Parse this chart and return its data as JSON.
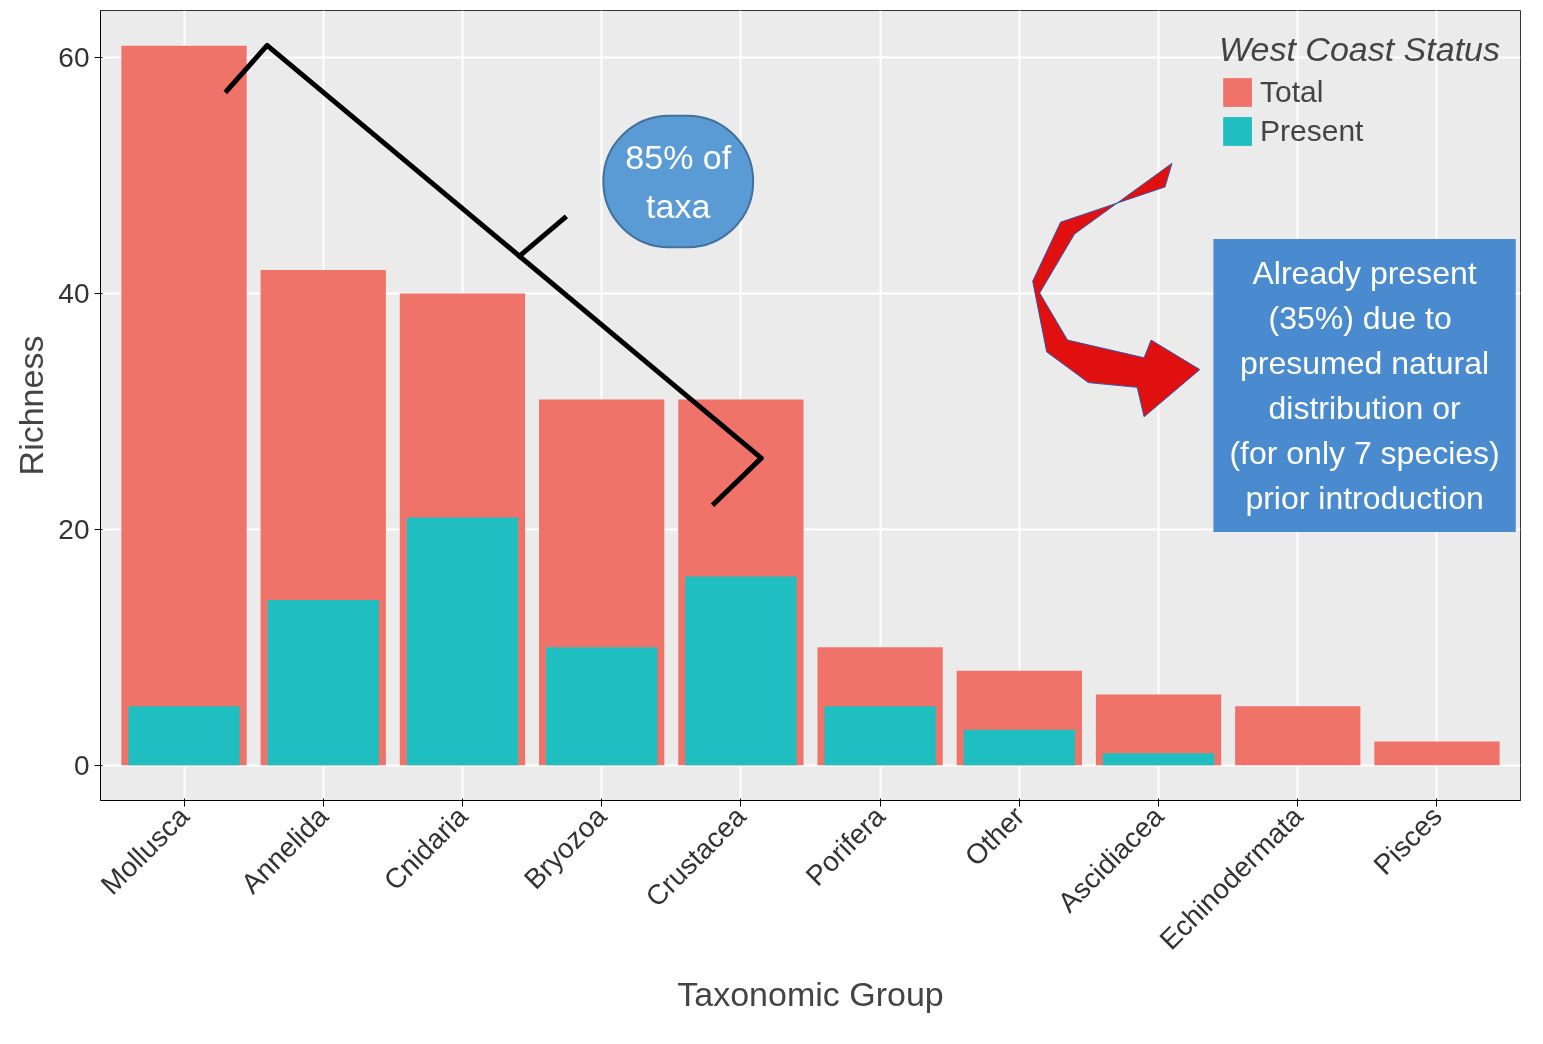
{
  "chart_data": {
    "type": "bar",
    "xlabel": "Taxonomic Group",
    "ylabel": "Richness",
    "legend_title": "West Coast Status",
    "categories": [
      "Mollusca",
      "Annelida",
      "Cnidaria",
      "Bryozoa",
      "Crustacea",
      "Porifera",
      "Other",
      "Ascidiacea",
      "Echinodermata",
      "Pisces"
    ],
    "series": [
      {
        "name": "Total",
        "color": "#f0736a",
        "values": [
          61,
          42,
          40,
          31,
          31,
          10,
          8,
          6,
          5,
          2
        ]
      },
      {
        "name": "Present",
        "color": "#1fbfc1",
        "values": [
          5,
          14,
          21,
          10,
          16,
          5,
          3,
          1,
          0,
          0
        ]
      }
    ],
    "ylim": [
      -3,
      64
    ],
    "yticks": [
      0,
      20,
      40,
      60
    ],
    "grid": true,
    "legend": "top right",
    "annotations": [
      "85% of\ntaxa",
      "Already present\n(35%)  due to\npresumed natural\ndistribution or\n(for only 7 species)\nprior introduction"
    ]
  }
}
